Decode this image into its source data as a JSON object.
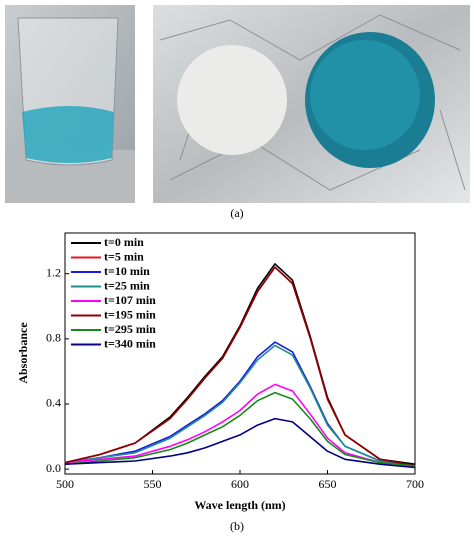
{
  "caption_a": "(a)",
  "caption_b": "(b)",
  "chart_data": {
    "type": "line",
    "xlabel": "Wave length (nm)",
    "ylabel": "Absorbance",
    "x": [
      500,
      520,
      540,
      560,
      570,
      580,
      590,
      600,
      610,
      620,
      630,
      640,
      650,
      660,
      680,
      700
    ],
    "xlim": [
      500,
      700
    ],
    "xticks": [
      500,
      550,
      600,
      650,
      700
    ],
    "ylim": [
      -0.03,
      1.45
    ],
    "yticks": [
      {
        "value": 0,
        "label": "0.0"
      },
      0.4,
      0.8,
      1.2
    ],
    "legend": "upper left",
    "series": [
      {
        "name": "t=0 min",
        "color": "#000000",
        "values": [
          0.04,
          0.09,
          0.16,
          0.32,
          0.44,
          0.57,
          0.69,
          0.88,
          1.11,
          1.26,
          1.16,
          0.82,
          0.44,
          0.21,
          0.06,
          0.03
        ]
      },
      {
        "name": "t=5 min",
        "color": "#e8141c",
        "values": [
          0.04,
          0.09,
          0.16,
          0.31,
          0.43,
          0.56,
          0.68,
          0.87,
          1.09,
          1.24,
          1.14,
          0.81,
          0.43,
          0.21,
          0.06,
          0.02
        ]
      },
      {
        "name": "t=10 min",
        "color": "#1c1ce0",
        "values": [
          0.04,
          0.07,
          0.11,
          0.2,
          0.27,
          0.34,
          0.42,
          0.54,
          0.69,
          0.78,
          0.72,
          0.51,
          0.28,
          0.14,
          0.05,
          0.02
        ]
      },
      {
        "name": "t=25 min",
        "color": "#1f8f8f",
        "values": [
          0.04,
          0.07,
          0.1,
          0.19,
          0.26,
          0.33,
          0.41,
          0.53,
          0.67,
          0.76,
          0.7,
          0.5,
          0.27,
          0.14,
          0.05,
          0.02
        ]
      },
      {
        "name": "t=107 min",
        "color": "#ff00ff",
        "values": [
          0.04,
          0.06,
          0.08,
          0.14,
          0.18,
          0.23,
          0.29,
          0.36,
          0.46,
          0.52,
          0.48,
          0.34,
          0.19,
          0.1,
          0.04,
          0.02
        ]
      },
      {
        "name": "t=195 min",
        "color": "#8b0000",
        "values": [
          0.04,
          0.09,
          0.16,
          0.31,
          0.43,
          0.56,
          0.68,
          0.87,
          1.09,
          1.24,
          1.14,
          0.81,
          0.43,
          0.21,
          0.06,
          0.02
        ]
      },
      {
        "name": "t=295 min",
        "color": "#1a8a1a",
        "values": [
          0.03,
          0.05,
          0.07,
          0.12,
          0.16,
          0.21,
          0.26,
          0.33,
          0.42,
          0.47,
          0.43,
          0.31,
          0.17,
          0.09,
          0.04,
          0.02
        ]
      },
      {
        "name": "t=340 min",
        "color": "#000080",
        "values": [
          0.03,
          0.04,
          0.05,
          0.08,
          0.1,
          0.13,
          0.17,
          0.21,
          0.27,
          0.31,
          0.29,
          0.2,
          0.11,
          0.06,
          0.03,
          0.01
        ]
      }
    ]
  }
}
